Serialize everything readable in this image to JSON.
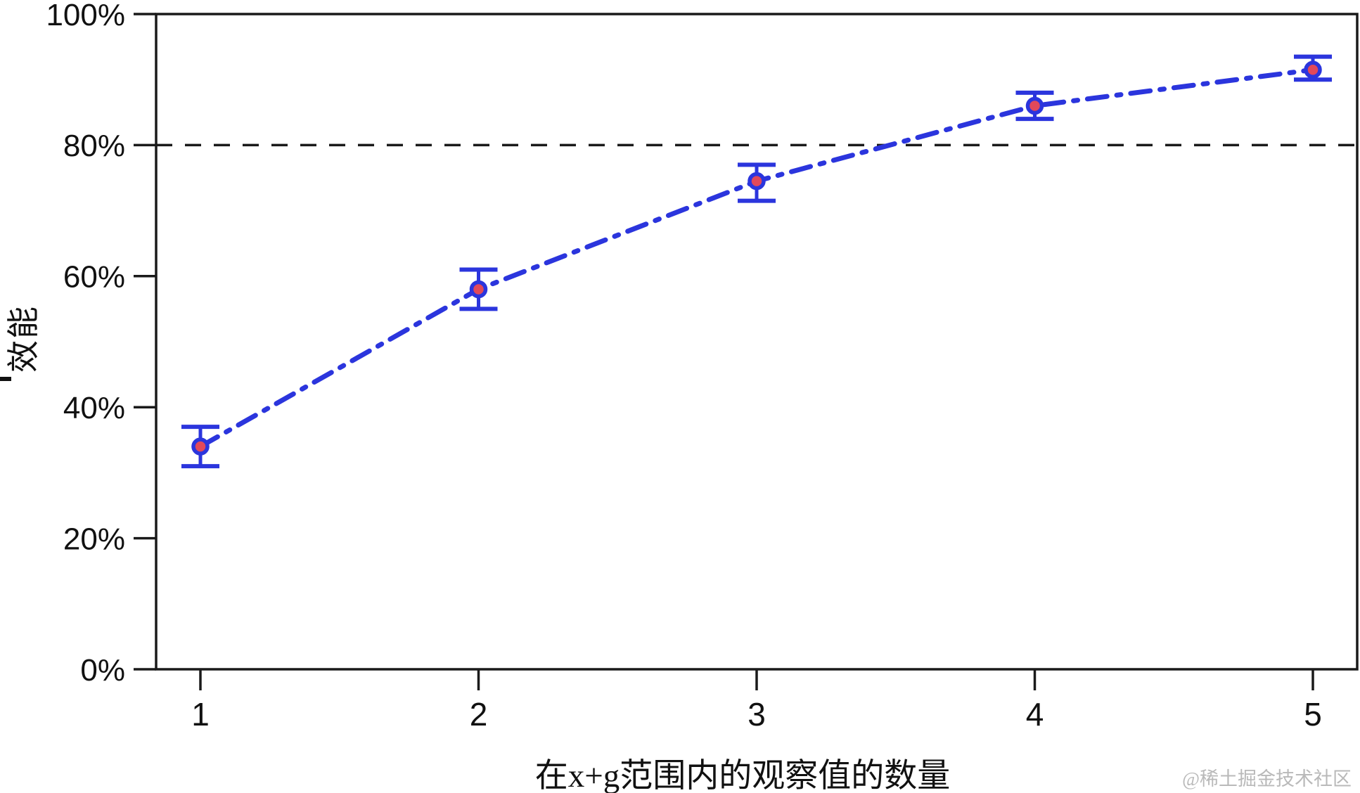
{
  "chart_data": {
    "type": "line",
    "title": "",
    "xlabel": "在x+g范围内的观察值的数量",
    "ylabel": "效能",
    "x": [
      1,
      2,
      3,
      4,
      5
    ],
    "series": [
      {
        "name": "效能",
        "values": [
          34,
          58,
          74.5,
          86,
          91.5
        ],
        "error_low": [
          31,
          55,
          71.5,
          84,
          90
        ],
        "error_high": [
          37,
          61,
          77,
          88,
          93.5
        ],
        "line_style": "dash-dot",
        "marker": "circle"
      }
    ],
    "reference_line": {
      "value": 80,
      "style": "dashed"
    },
    "ylim": [
      0,
      100
    ],
    "yticks": [
      {
        "value": 0,
        "label": "0%"
      },
      {
        "value": 20,
        "label": "20%"
      },
      {
        "value": 40,
        "label": "40%"
      },
      {
        "value": 60,
        "label": "60%"
      },
      {
        "value": 80,
        "label": "80%"
      },
      {
        "value": 100,
        "label": "100%"
      }
    ],
    "xticks": [
      {
        "value": 1,
        "label": "1"
      },
      {
        "value": 2,
        "label": "2"
      },
      {
        "value": 3,
        "label": "3"
      },
      {
        "value": 4,
        "label": "4"
      },
      {
        "value": 5,
        "label": "5"
      }
    ],
    "grid": false,
    "legend": null,
    "colors": {
      "line": "#2b35dd",
      "marker_fill": "#e2495a",
      "marker_stroke": "#2b35dd",
      "error_bar": "#2b35dd",
      "axis": "#1a1a1a",
      "reference_line": "#1a1a1a",
      "tick_label": "#111111"
    }
  },
  "watermark": {
    "text": "@稀土掘金技术社区",
    "color": "#b9b9b9"
  }
}
